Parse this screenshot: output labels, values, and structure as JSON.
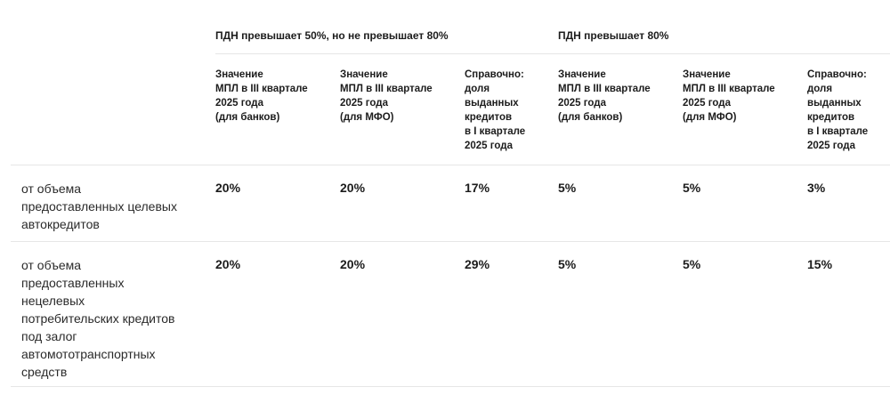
{
  "header": {
    "groups": [
      "ПДН превышает 50%, но не превышает 80%",
      "ПДН превышает 80%"
    ],
    "columns": [
      [
        "Значение",
        "МПЛ в III квартале",
        "2025 года",
        "(для банков)"
      ],
      [
        "Значение",
        "МПЛ в III квартале",
        "2025 года",
        "(для МФО)"
      ],
      [
        "Справочно:",
        "доля",
        "выданных",
        "кредитов",
        "в I квартале",
        "2025 года"
      ],
      [
        "Значение",
        "МПЛ в III квартале",
        "2025 года",
        "(для банков)"
      ],
      [
        "Значение",
        "МПЛ в III квартале",
        "2025 года",
        "(для МФО)"
      ],
      [
        "Справочно:",
        "доля",
        "выданных",
        "кредитов",
        "в I квартале",
        "2025 года"
      ]
    ]
  },
  "rows": [
    {
      "label": [
        "от объема",
        "предоставленных целевых",
        "автокредитов"
      ],
      "values": [
        "20%",
        "20%",
        "17%",
        "5%",
        "5%",
        "3%"
      ]
    },
    {
      "label": [
        "от объема",
        "предоставленных",
        "нецелевых",
        "потребительских кредитов",
        "под залог",
        "автомототранспортных",
        "средств"
      ],
      "values": [
        "20%",
        "20%",
        "29%",
        "5%",
        "5%",
        "15%"
      ]
    }
  ]
}
